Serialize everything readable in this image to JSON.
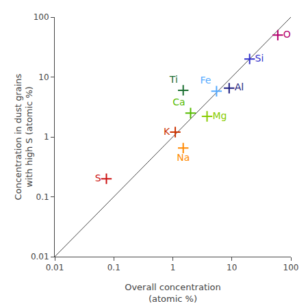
{
  "chart_data": {
    "type": "scatter",
    "xlabel": "Overall concentration\n(atomic %)",
    "ylabel": "Concentration in dust grains\nwith high S (atomic %)",
    "log": true,
    "grid": false,
    "marker": "plus",
    "xlim": [
      0.01,
      100
    ],
    "ylim": [
      0.01,
      100
    ],
    "xticks": [
      0.01,
      0.1,
      1,
      10,
      100
    ],
    "yticks": [
      0.01,
      0.1,
      1,
      10,
      100
    ],
    "series": [
      {
        "type": "line",
        "line_style": "solid",
        "color": "#444444",
        "x": [
          0.01,
          100
        ],
        "values": [
          0.01,
          100
        ]
      },
      {
        "type": "scatter",
        "name": "O",
        "color": "#b5006e",
        "x": [
          60
        ],
        "values": [
          50
        ]
      },
      {
        "type": "scatter",
        "name": "Si",
        "color": "#3030cc",
        "x": [
          20
        ],
        "values": [
          20
        ]
      },
      {
        "type": "scatter",
        "name": "Al",
        "color": "#1a1a7e",
        "x": [
          9.0
        ],
        "values": [
          6.5
        ]
      },
      {
        "type": "scatter",
        "name": "Fe",
        "color": "#55aaff",
        "x": [
          5.5
        ],
        "values": [
          5.8
        ]
      },
      {
        "type": "scatter",
        "name": "Ti",
        "color": "#1a6e30",
        "x": [
          1.5
        ],
        "values": [
          6.0
        ]
      },
      {
        "type": "scatter",
        "name": "Ca",
        "color": "#55bb00",
        "x": [
          2.0
        ],
        "values": [
          2.5
        ]
      },
      {
        "type": "scatter",
        "name": "Mg",
        "color": "#88cc00",
        "x": [
          3.8
        ],
        "values": [
          2.2
        ]
      },
      {
        "type": "scatter",
        "name": "K",
        "color": "#cc3300",
        "x": [
          1.1
        ],
        "values": [
          1.2
        ]
      },
      {
        "type": "scatter",
        "name": "Na",
        "color": "#ff8800",
        "x": [
          1.5
        ],
        "values": [
          0.65
        ]
      },
      {
        "type": "scatter",
        "name": "S",
        "color": "#cc1111",
        "x": [
          0.075
        ],
        "values": [
          0.2
        ]
      }
    ]
  }
}
